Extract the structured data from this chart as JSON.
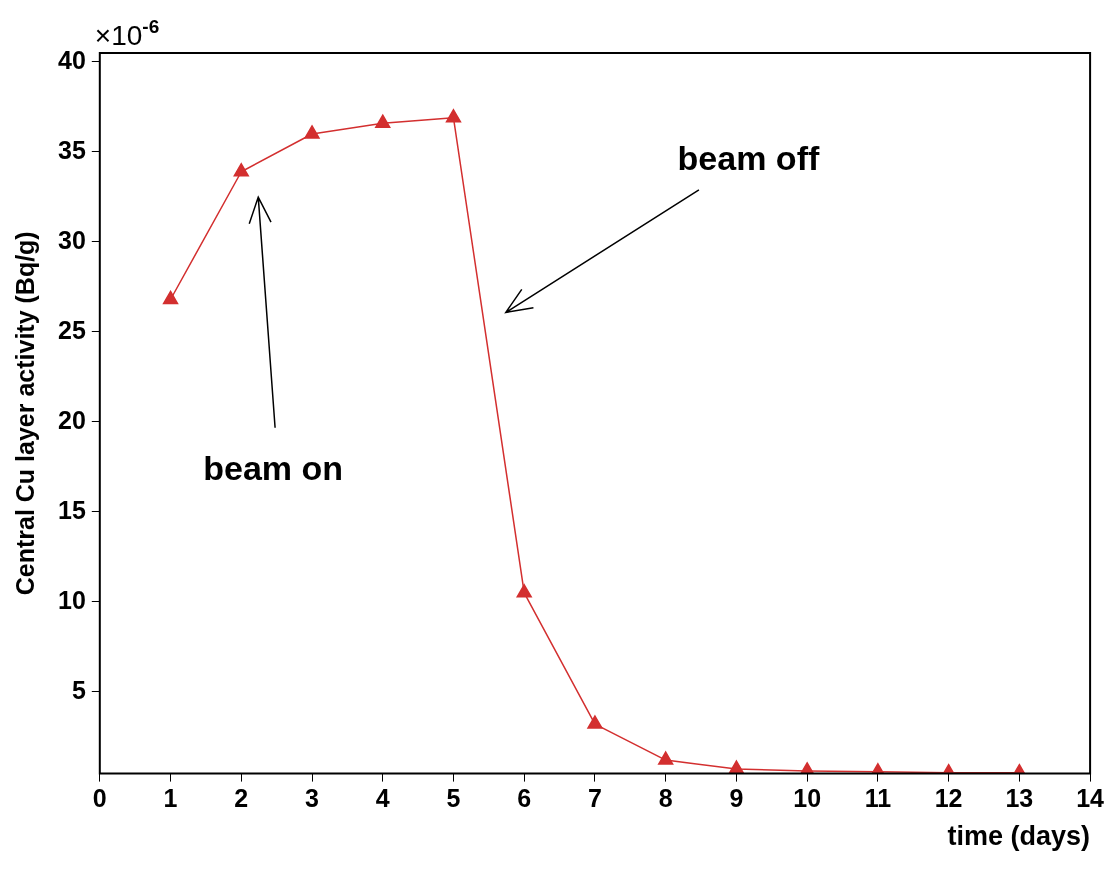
{
  "chart_data": {
    "type": "line",
    "xlabel": "time (days)",
    "ylabel": "Central Cu layer activity (Bq/g)",
    "x": [
      1,
      2,
      3,
      4,
      5,
      6,
      7,
      8,
      9,
      10,
      11,
      12,
      13
    ],
    "series": [
      {
        "color": "#d32f2f",
        "values": [
          26.8,
          33.9,
          36.0,
          36.6,
          36.9,
          10.5,
          3.2,
          1.2,
          0.7,
          0.6,
          0.55,
          0.5,
          0.5
        ]
      }
    ],
    "xlim": [
      0,
      14
    ],
    "xticks": [
      0,
      1,
      2,
      3,
      4,
      5,
      6,
      7,
      8,
      9,
      10,
      11,
      12,
      13,
      14
    ],
    "ylim": [
      0.45,
      40.5
    ],
    "yticks": [
      5,
      10,
      15,
      20,
      25,
      30,
      35,
      40
    ],
    "marker": "triangle",
    "line_style": "solid",
    "grid": false,
    "legend": false,
    "annotations": [
      "×10$^{-6}$",
      "beam on",
      "beam off"
    ]
  }
}
